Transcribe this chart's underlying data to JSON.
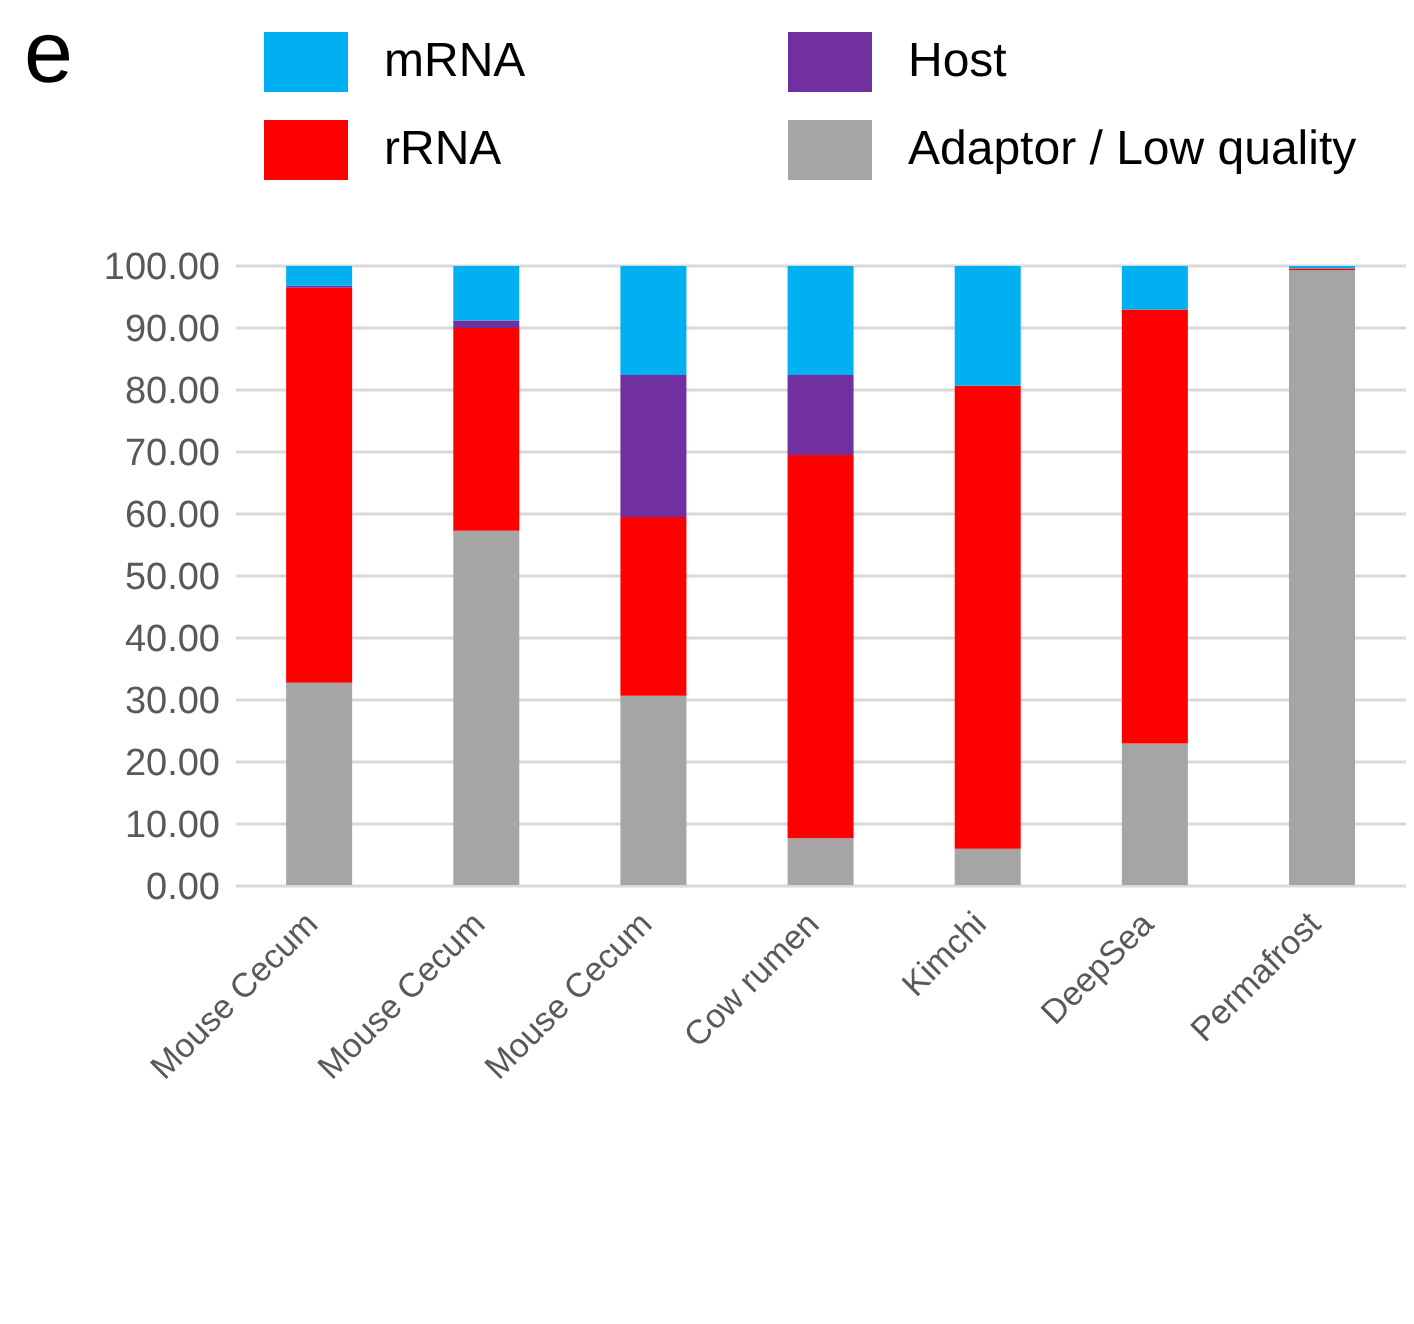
{
  "chart_data": {
    "type": "bar",
    "title": "e",
    "stacked": true,
    "legend": "top",
    "grid": "y",
    "categories": [
      "Mouse Cecum",
      "Mouse Cecum",
      "Mouse Cecum",
      "Cow rumen",
      "Kimchi",
      "DeepSea",
      "Permafrost"
    ],
    "series": [
      {
        "name": "Adaptor / Low quality",
        "color": "#a5a5a5",
        "values": [
          32.8,
          57.3,
          30.7,
          7.7,
          6.0,
          23.0,
          99.3
        ]
      },
      {
        "name": "rRNA",
        "color": "#ff0000",
        "values": [
          63.7,
          32.7,
          28.8,
          61.8,
          74.7,
          70.0,
          0.3
        ]
      },
      {
        "name": "Host",
        "color": "#7030a0",
        "values": [
          0.3,
          1.2,
          22.9,
          12.9,
          0,
          0,
          0
        ]
      },
      {
        "name": "mRNA",
        "color": "#00b0f0",
        "values": [
          3.2,
          8.8,
          17.6,
          17.6,
          19.3,
          7.0,
          0.4
        ]
      }
    ],
    "ylim": [
      0,
      100
    ],
    "yticks": [
      {
        "value": 0,
        "label": "0.00"
      },
      {
        "value": 10,
        "label": "10.00"
      },
      {
        "value": 20,
        "label": "20.00"
      },
      {
        "value": 30,
        "label": "30.00"
      },
      {
        "value": 40,
        "label": "40.00"
      },
      {
        "value": 50,
        "label": "50.00"
      },
      {
        "value": 60,
        "label": "60.00"
      },
      {
        "value": 70,
        "label": "70.00"
      },
      {
        "value": 80,
        "label": "80.00"
      },
      {
        "value": 90,
        "label": "90.00"
      },
      {
        "value": 100,
        "label": "100.00"
      }
    ]
  }
}
